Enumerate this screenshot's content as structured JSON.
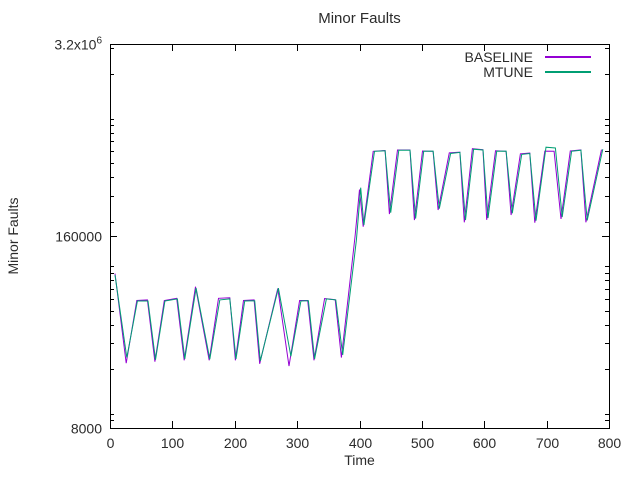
{
  "chart_data": {
    "type": "line",
    "title": "Minor Faults",
    "xlabel": "Time",
    "ylabel": "Minor Faults",
    "xlim": [
      0,
      800
    ],
    "ylim": [
      8000,
      3200000
    ],
    "y_scale": "log",
    "grid": false,
    "legend_position": "top-right-inside",
    "axis_color": "#000000",
    "text_color": "#2b2b2b",
    "x_ticks": [
      0,
      100,
      200,
      300,
      400,
      500,
      600,
      700,
      800
    ],
    "y_ticks": [
      {
        "value": 8000,
        "text": "8000"
      },
      {
        "value": 160000,
        "text": "160000"
      },
      {
        "value": 3200000,
        "text": "3.2x10",
        "sup": "6"
      }
    ],
    "series": [
      {
        "name": "BASELINE",
        "color": "#9400d3",
        "points": [
          [
            8,
            89000
          ],
          [
            26,
            22000
          ],
          [
            43,
            58500
          ],
          [
            60,
            59000
          ],
          [
            72,
            22500
          ],
          [
            87,
            58500
          ],
          [
            107,
            60500
          ],
          [
            119,
            23000
          ],
          [
            137,
            72500
          ],
          [
            159,
            23000
          ],
          [
            174,
            60500
          ],
          [
            192,
            61000
          ],
          [
            201,
            23000
          ],
          [
            214,
            58500
          ],
          [
            231,
            59000
          ],
          [
            240,
            21800
          ],
          [
            269,
            70500
          ],
          [
            287,
            21000
          ],
          [
            304,
            58500
          ],
          [
            317,
            58500
          ],
          [
            327,
            23000
          ],
          [
            344,
            60200
          ],
          [
            361,
            59200
          ],
          [
            371,
            24000
          ],
          [
            393,
            160000
          ],
          [
            400,
            330000
          ],
          [
            406,
            185000
          ],
          [
            422,
            600000
          ],
          [
            441,
            607000
          ],
          [
            448,
            225000
          ],
          [
            461,
            612000
          ],
          [
            481,
            612000
          ],
          [
            488,
            205000
          ],
          [
            501,
            603000
          ],
          [
            518,
            600000
          ],
          [
            526,
            240000
          ],
          [
            544,
            585000
          ],
          [
            561,
            592000
          ],
          [
            568,
            198000
          ],
          [
            581,
            625000
          ],
          [
            598,
            615000
          ],
          [
            604,
            206000
          ],
          [
            618,
            605000
          ],
          [
            635,
            600000
          ],
          [
            643,
            222000
          ],
          [
            658,
            577000
          ],
          [
            673,
            584000
          ],
          [
            681,
            197000
          ],
          [
            697,
            602000
          ],
          [
            712,
            600000
          ],
          [
            723,
            209000
          ],
          [
            738,
            603000
          ],
          [
            755,
            613000
          ],
          [
            763,
            198000
          ],
          [
            788,
            616000
          ]
        ]
      },
      {
        "name": "MTUNE",
        "color": "#009e73",
        "points": [
          [
            8,
            87000
          ],
          [
            27,
            24000
          ],
          [
            44,
            58000
          ],
          [
            61,
            58000
          ],
          [
            73,
            23200
          ],
          [
            88,
            58000
          ],
          [
            108,
            60000
          ],
          [
            120,
            23500
          ],
          [
            138,
            71000
          ],
          [
            160,
            23400
          ],
          [
            176,
            59000
          ],
          [
            192,
            60000
          ],
          [
            202,
            23500
          ],
          [
            216,
            58000
          ],
          [
            232,
            58200
          ],
          [
            241,
            22800
          ],
          [
            270,
            71000
          ],
          [
            290,
            24500
          ],
          [
            306,
            58000
          ],
          [
            318,
            58200
          ],
          [
            328,
            23500
          ],
          [
            347,
            60000
          ],
          [
            362,
            59000
          ],
          [
            373,
            25000
          ],
          [
            395,
            150000
          ],
          [
            402,
            340000
          ],
          [
            407,
            190000
          ],
          [
            424,
            600000
          ],
          [
            441,
            605000
          ],
          [
            450,
            230000
          ],
          [
            463,
            610000
          ],
          [
            481,
            610000
          ],
          [
            490,
            210000
          ],
          [
            503,
            600000
          ],
          [
            518,
            602000
          ],
          [
            528,
            245000
          ],
          [
            546,
            580000
          ],
          [
            561,
            590000
          ],
          [
            570,
            205000
          ],
          [
            583,
            620000
          ],
          [
            598,
            612000
          ],
          [
            606,
            212000
          ],
          [
            620,
            600000
          ],
          [
            635,
            602000
          ],
          [
            645,
            228000
          ],
          [
            660,
            572000
          ],
          [
            673,
            580000
          ],
          [
            683,
            203000
          ],
          [
            699,
            640000
          ],
          [
            714,
            632000
          ],
          [
            725,
            215000
          ],
          [
            740,
            600000
          ],
          [
            755,
            610000
          ],
          [
            765,
            204000
          ],
          [
            790,
            620000
          ]
        ]
      }
    ]
  }
}
